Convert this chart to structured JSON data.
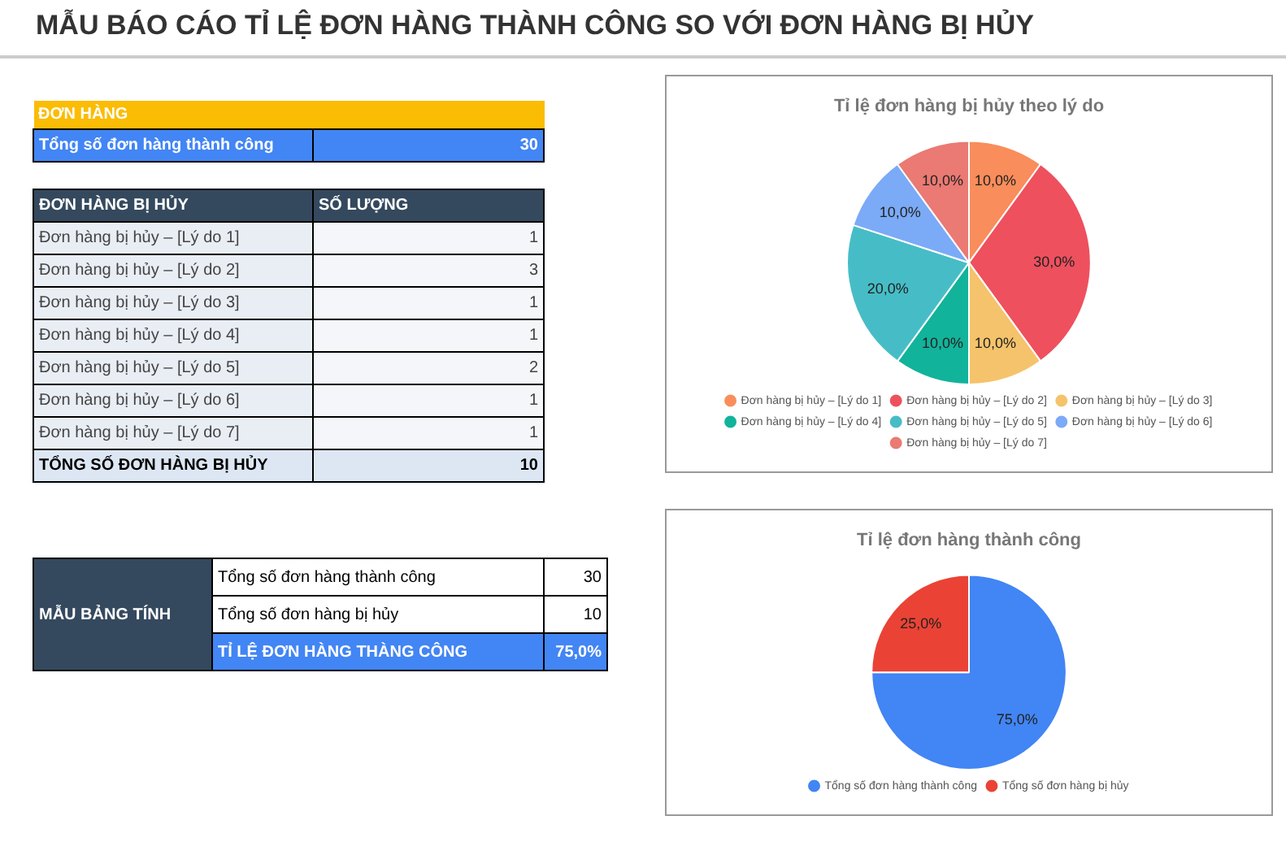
{
  "chart_data": [
    {
      "type": "other",
      "title": "MẪU BÁO CÁO TỈ LỆ ĐƠN HÀNG THÀNH CÔNG SO VỚI ĐƠN HÀNG BỊ HỦY",
      "annotations": [
        "ĐƠN HÀNG",
        "Tổng số đơn hàng thành công",
        "30",
        "ĐƠN HÀNG BỊ HỦY",
        "SỐ LƯỢNG",
        "Đơn hàng bị hủy – [Lý do 1]",
        "1",
        "Đơn hàng bị hủy – [Lý do 2]",
        "3",
        "Đơn hàng bị hủy – [Lý do 3]",
        "1",
        "Đơn hàng bị hủy – [Lý do 4]",
        "1",
        "Đơn hàng bị hủy – [Lý do 5]",
        "2",
        "Đơn hàng bị hủy – [Lý do 6]",
        "1",
        "Đơn hàng bị hủy – [Lý do 7]",
        "1",
        "TỔNG SỐ ĐƠN HÀNG BỊ HỦY",
        "10",
        "MẪU BẢNG TÍNH",
        "Tổng số đơn hàng thành công",
        "30",
        "Tổng số đơn hàng bị hủy",
        "10",
        "TỈ LỆ ĐƠN HÀNG THÀNG CÔNG",
        "75,0%"
      ]
    },
    {
      "type": "pie",
      "title": "Tỉ lệ đơn hàng bị hủy theo lý do",
      "categories": [
        "Đơn hàng bị hủy – [Lý do 1]",
        "Đơn hàng bị hủy – [Lý do 2]",
        "Đơn hàng bị hủy – [Lý do 3]",
        "Đơn hàng bị hủy – [Lý do 4]",
        "Đơn hàng bị hủy – [Lý do 5]",
        "Đơn hàng bị hủy – [Lý do 6]",
        "Đơn hàng bị hủy – [Lý do 7]"
      ],
      "values": [
        10,
        30,
        10,
        10,
        20,
        10,
        10
      ],
      "colors": [
        "#f98d5b",
        "#ee505e",
        "#f5c36b",
        "#12b39b",
        "#46bdc6",
        "#7baaf7",
        "#ea7a73"
      ],
      "value_labels": [
        "10,0%",
        "30,0%",
        "10,0%",
        "10,0%",
        "20,0%",
        "10,0%",
        "10,0%"
      ],
      "legend": "bottom"
    },
    {
      "type": "pie",
      "title": "Tỉ lệ đơn hàng thành công",
      "categories": [
        "Tổng số đơn hàng thành công",
        "Tổng số đơn hàng bị hủy"
      ],
      "values": [
        75,
        25
      ],
      "colors": [
        "#4285f4",
        "#ea4335"
      ],
      "value_labels": [
        "75,0%",
        "25,0%"
      ],
      "legend": "bottom"
    }
  ]
}
